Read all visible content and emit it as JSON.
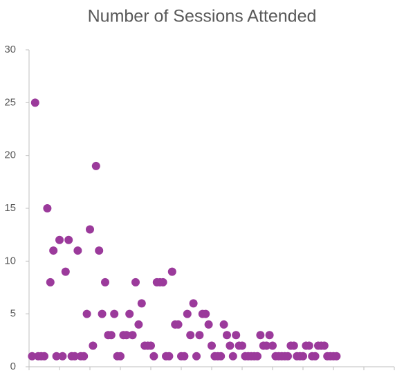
{
  "chart_data": {
    "type": "scatter",
    "title": "Number of Sessions Attended",
    "color": "#9b3a9b",
    "x": [
      1,
      2,
      3,
      4,
      5,
      6,
      7,
      8,
      9,
      10,
      11,
      12,
      13,
      14,
      15,
      16,
      17,
      18,
      19,
      20,
      21,
      22,
      23,
      24,
      25,
      26,
      27,
      28,
      29,
      30,
      31,
      32,
      33,
      34,
      35,
      36,
      37,
      38,
      39,
      40,
      41,
      42,
      43,
      44,
      45,
      46,
      47,
      48,
      49,
      50,
      51,
      52,
      53,
      54,
      55,
      56,
      57,
      58,
      59,
      60,
      61,
      62,
      63,
      64,
      65,
      66,
      67,
      68,
      69,
      70,
      71,
      72,
      73,
      74,
      75,
      76,
      77,
      78,
      79,
      80,
      81,
      82,
      83,
      84,
      85,
      86,
      87,
      88,
      89,
      90,
      91,
      92,
      93,
      94,
      95,
      96,
      97,
      98,
      99,
      100,
      101
    ],
    "values": [
      1,
      25,
      1,
      1,
      1,
      15,
      8,
      11,
      1,
      12,
      1,
      9,
      12,
      1,
      1,
      11,
      1,
      1,
      5,
      13,
      2,
      19,
      11,
      5,
      8,
      3,
      3,
      5,
      1,
      1,
      3,
      3,
      5,
      3,
      8,
      4,
      6,
      2,
      2,
      2,
      1,
      8,
      8,
      8,
      1,
      1,
      9,
      4,
      4,
      1,
      1,
      5,
      3,
      6,
      1,
      3,
      5,
      5,
      4,
      2,
      1,
      1,
      1,
      4,
      3,
      2,
      1,
      3,
      2,
      2,
      1,
      1,
      1,
      1,
      1,
      3,
      2,
      2,
      3,
      2,
      1,
      1,
      1,
      1,
      1,
      2,
      2,
      1,
      1,
      1,
      2,
      2,
      1,
      1,
      2,
      2,
      2,
      1,
      1,
      1,
      1
    ],
    "xlim": [
      0,
      120
    ],
    "xticks": [
      0,
      10,
      20,
      30,
      40,
      50,
      60,
      70,
      80,
      90,
      100,
      110,
      120
    ],
    "ylim": [
      0,
      30
    ],
    "yticks": [
      0,
      5,
      10,
      15,
      20,
      25,
      30
    ],
    "grid": false
  }
}
